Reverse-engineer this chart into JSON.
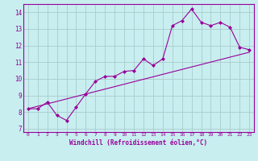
{
  "background_color": "#c8eef0",
  "grid_color": "#aacccc",
  "line_color": "#990099",
  "marker_color": "#990099",
  "xlabel": "Windchill (Refroidissement éolien,°C)",
  "xlim": [
    -0.5,
    23.5
  ],
  "ylim": [
    6.8,
    14.5
  ],
  "yticks": [
    7,
    8,
    9,
    10,
    11,
    12,
    13,
    14
  ],
  "xticks": [
    0,
    1,
    2,
    3,
    4,
    5,
    6,
    7,
    8,
    9,
    10,
    11,
    12,
    13,
    14,
    15,
    16,
    17,
    18,
    19,
    20,
    21,
    22,
    23
  ],
  "curve1_x": [
    0,
    1,
    2,
    3,
    4,
    5,
    6,
    7,
    8,
    9,
    10,
    11,
    12,
    13,
    14,
    15,
    16,
    17,
    18,
    19,
    20,
    21,
    22,
    23
  ],
  "curve1_y": [
    8.2,
    8.2,
    8.6,
    7.8,
    7.5,
    8.3,
    9.1,
    9.85,
    10.15,
    10.15,
    10.45,
    10.5,
    11.2,
    10.8,
    11.2,
    13.2,
    13.5,
    14.2,
    13.4,
    13.2,
    13.4,
    13.1,
    11.9,
    11.75
  ],
  "curve2_x": [
    0,
    23
  ],
  "curve2_y": [
    8.2,
    11.6
  ]
}
